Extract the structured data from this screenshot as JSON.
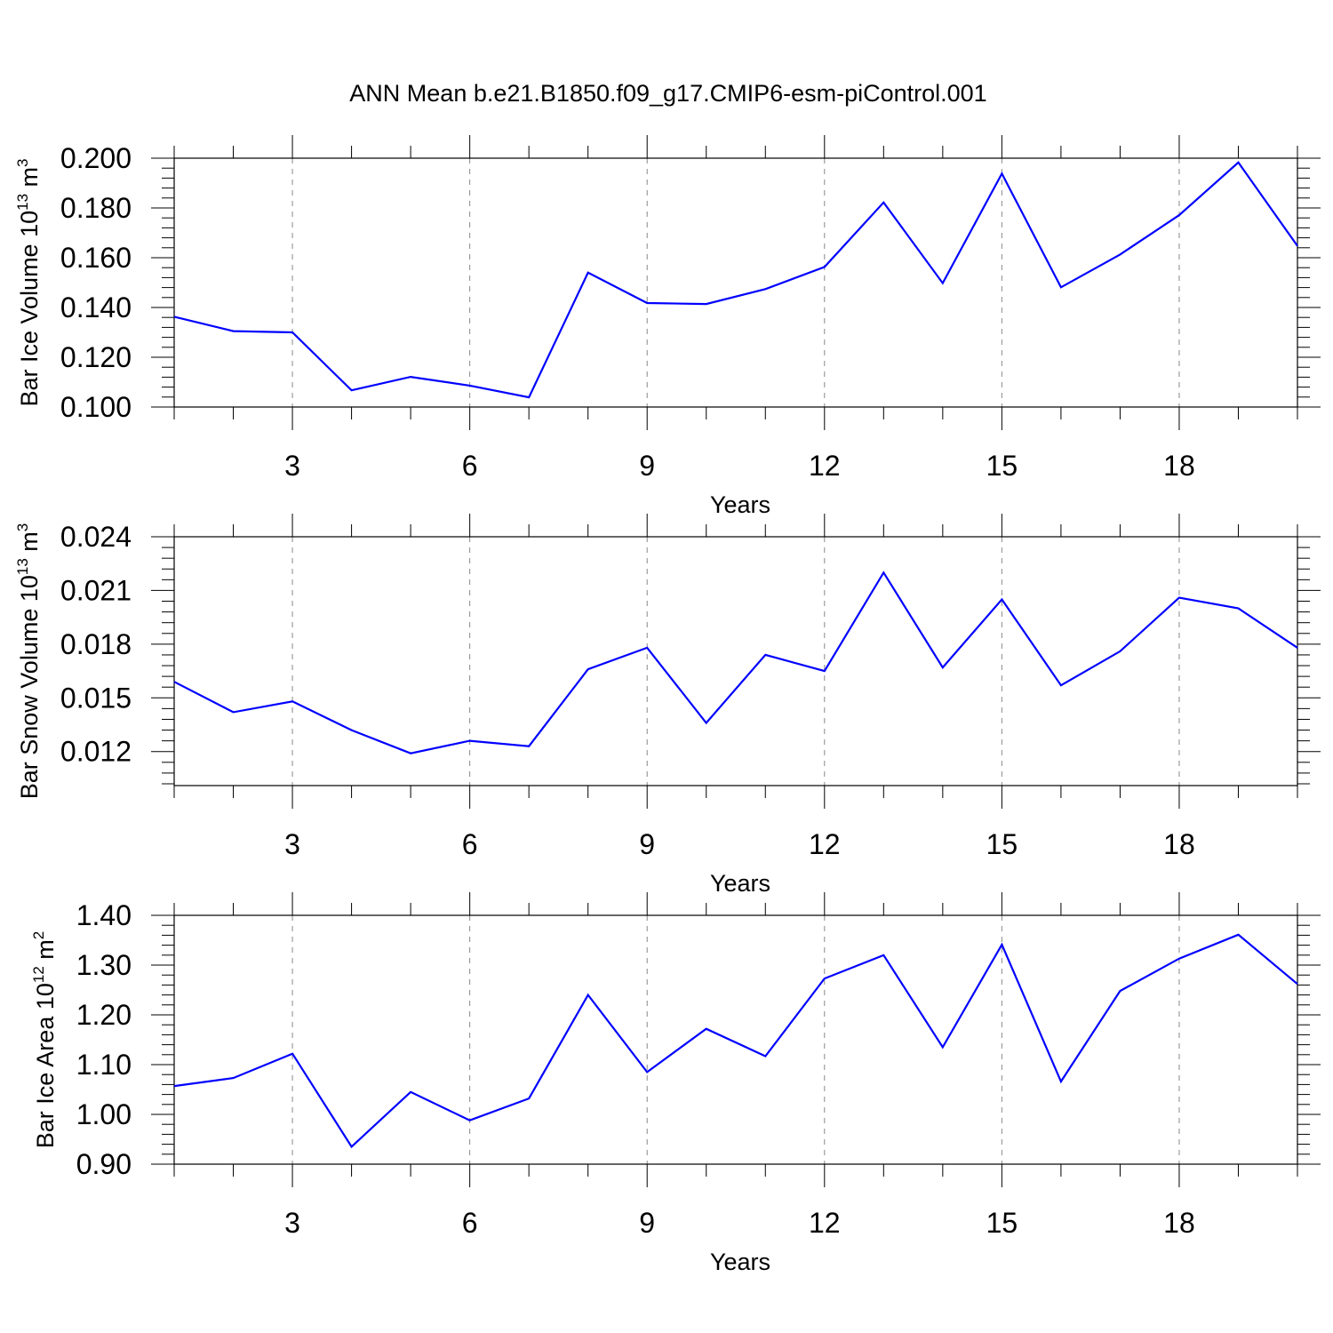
{
  "title": "ANN Mean b.e21.B1850.f09_g17.CMIP6-esm-piControl.001",
  "chart_data": [
    {
      "type": "line",
      "title": "",
      "ylabel": {
        "text": "Bar Ice Volume 10",
        "exp": "13",
        "unit": "m",
        "unit_exp": "3"
      },
      "xlabel": "Years",
      "xlim": [
        1,
        20
      ],
      "ylim": [
        0.1,
        0.2
      ],
      "xticks": [
        3,
        6,
        9,
        12,
        15,
        18
      ],
      "xtick_labels": [
        "3",
        "6",
        "9",
        "12",
        "15",
        "18"
      ],
      "yticks": [
        0.1,
        0.12,
        0.14,
        0.16,
        0.18,
        0.2
      ],
      "ytick_labels": [
        "0.100",
        "0.120",
        "0.140",
        "0.160",
        "0.180",
        "0.200"
      ],
      "grid": "vertical dashed at major x ticks",
      "color": "#0000ff",
      "x": [
        1,
        2,
        3,
        4,
        5,
        6,
        7,
        8,
        9,
        10,
        11,
        12,
        13,
        14,
        15,
        16,
        17,
        18,
        19,
        20
      ],
      "y": [
        0.1363,
        0.1305,
        0.13,
        0.1067,
        0.1121,
        0.1086,
        0.1039,
        0.154,
        0.1418,
        0.1414,
        0.1474,
        0.1563,
        0.1822,
        0.1498,
        0.1938,
        0.1481,
        0.1613,
        0.1771,
        0.1983,
        0.1647
      ]
    },
    {
      "type": "line",
      "title": "",
      "ylabel": {
        "text": "Bar Snow Volume 10",
        "exp": "13",
        "unit": "m",
        "unit_exp": "3"
      },
      "xlabel": "Years",
      "xlim": [
        1,
        20
      ],
      "ylim": [
        0.0101,
        0.024
      ],
      "xticks": [
        3,
        6,
        9,
        12,
        15,
        18
      ],
      "xtick_labels": [
        "3",
        "6",
        "9",
        "12",
        "15",
        "18"
      ],
      "yticks": [
        0.012,
        0.015,
        0.018,
        0.021,
        0.024
      ],
      "ytick_labels": [
        "0.012",
        "0.015",
        "0.018",
        "0.021",
        "0.024"
      ],
      "grid": "vertical dashed at major x ticks",
      "color": "#0000ff",
      "x": [
        1,
        2,
        3,
        4,
        5,
        6,
        7,
        8,
        9,
        10,
        11,
        12,
        13,
        14,
        15,
        16,
        17,
        18,
        19,
        20
      ],
      "y": [
        0.0159,
        0.0142,
        0.0148,
        0.0132,
        0.0119,
        0.0126,
        0.0123,
        0.0166,
        0.0178,
        0.0136,
        0.0174,
        0.0165,
        0.022,
        0.0167,
        0.0205,
        0.0157,
        0.0176,
        0.0206,
        0.02,
        0.0178
      ]
    },
    {
      "type": "line",
      "title": "",
      "ylabel": {
        "text": "Bar Ice Area 10",
        "exp": "12",
        "unit": "m",
        "unit_exp": "2"
      },
      "xlabel": "Years",
      "xlim": [
        1,
        20
      ],
      "ylim": [
        0.9,
        1.4
      ],
      "xticks": [
        3,
        6,
        9,
        12,
        15,
        18
      ],
      "xtick_labels": [
        "3",
        "6",
        "9",
        "12",
        "15",
        "18"
      ],
      "yticks": [
        0.9,
        1.0,
        1.1,
        1.2,
        1.3,
        1.4
      ],
      "ytick_labels": [
        "0.90",
        "1.00",
        "1.10",
        "1.20",
        "1.30",
        "1.40"
      ],
      "grid": "vertical dashed at major x ticks",
      "color": "#0000ff",
      "x": [
        1,
        2,
        3,
        4,
        5,
        6,
        7,
        8,
        9,
        10,
        11,
        12,
        13,
        14,
        15,
        16,
        17,
        18,
        19,
        20
      ],
      "y": [
        1.057,
        1.073,
        1.122,
        0.935,
        1.045,
        0.988,
        1.032,
        1.24,
        1.085,
        1.172,
        1.117,
        1.273,
        1.32,
        1.135,
        1.341,
        1.066,
        1.248,
        1.313,
        1.361,
        1.262
      ]
    }
  ]
}
